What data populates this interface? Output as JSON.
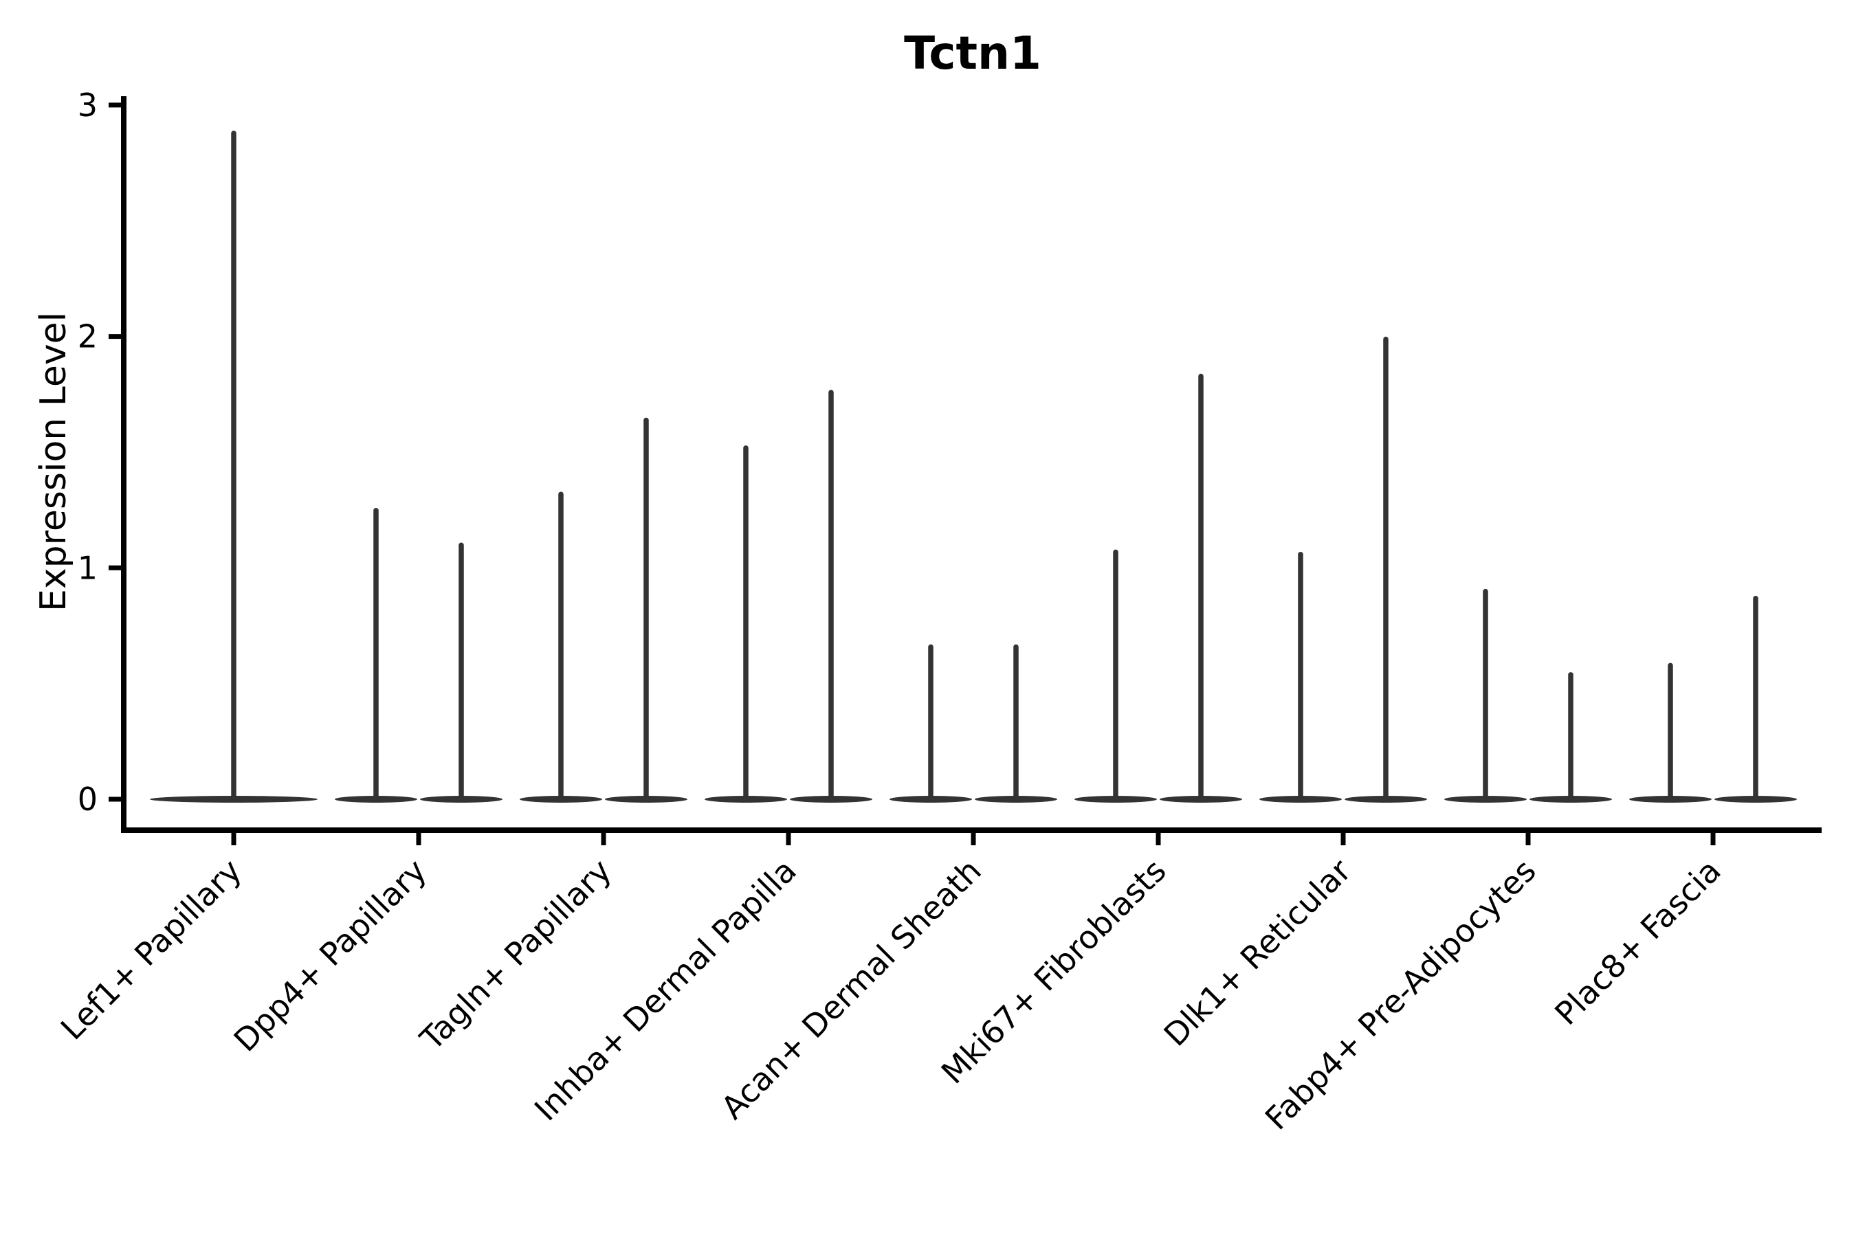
{
  "chart_data": {
    "type": "violin",
    "title": "Tctn1",
    "ylabel": "Expression Level",
    "xlabel": "",
    "yticks": [
      0,
      1,
      2,
      3
    ],
    "ylim": [
      -0.13,
      3.05
    ],
    "grid": false,
    "legend": false,
    "violin_color": "#333333",
    "axis_color": "#000000",
    "shape_note": "each violin has density concentrated at 0 (wide flat base) with a thin spike rising to its maximum expression value",
    "categories": [
      "Lef1+ Papillary",
      "Dpp4+ Papillary",
      "Tagln+ Papillary",
      "Inhba+ Dermal Papilla",
      "Acan+ Dermal Sheath",
      "Mki67+ Fibroblasts",
      "Dlk1+ Reticular",
      "Fabp4+ Pre-Adipocytes",
      "Plac8+ Fascia"
    ],
    "violins": [
      {
        "category": "Lef1+ Papillary",
        "maxima": [
          2.89
        ]
      },
      {
        "category": "Dpp4+ Papillary",
        "maxima": [
          1.26,
          1.11
        ]
      },
      {
        "category": "Tagln+ Papillary",
        "maxima": [
          1.33,
          1.65
        ]
      },
      {
        "category": "Inhba+ Dermal Papilla",
        "maxima": [
          1.53,
          1.77
        ]
      },
      {
        "category": "Acan+ Dermal Sheath",
        "maxima": [
          0.67,
          0.67
        ]
      },
      {
        "category": "Mki67+ Fibroblasts",
        "maxima": [
          1.08,
          1.84
        ]
      },
      {
        "category": "Dlk1+ Reticular",
        "maxima": [
          1.07,
          2.0
        ]
      },
      {
        "category": "Fabp4+ Pre-Adipocytes",
        "maxima": [
          0.91,
          0.55
        ]
      },
      {
        "category": "Plac8+ Fascia",
        "maxima": [
          0.59,
          0.88
        ]
      }
    ]
  }
}
